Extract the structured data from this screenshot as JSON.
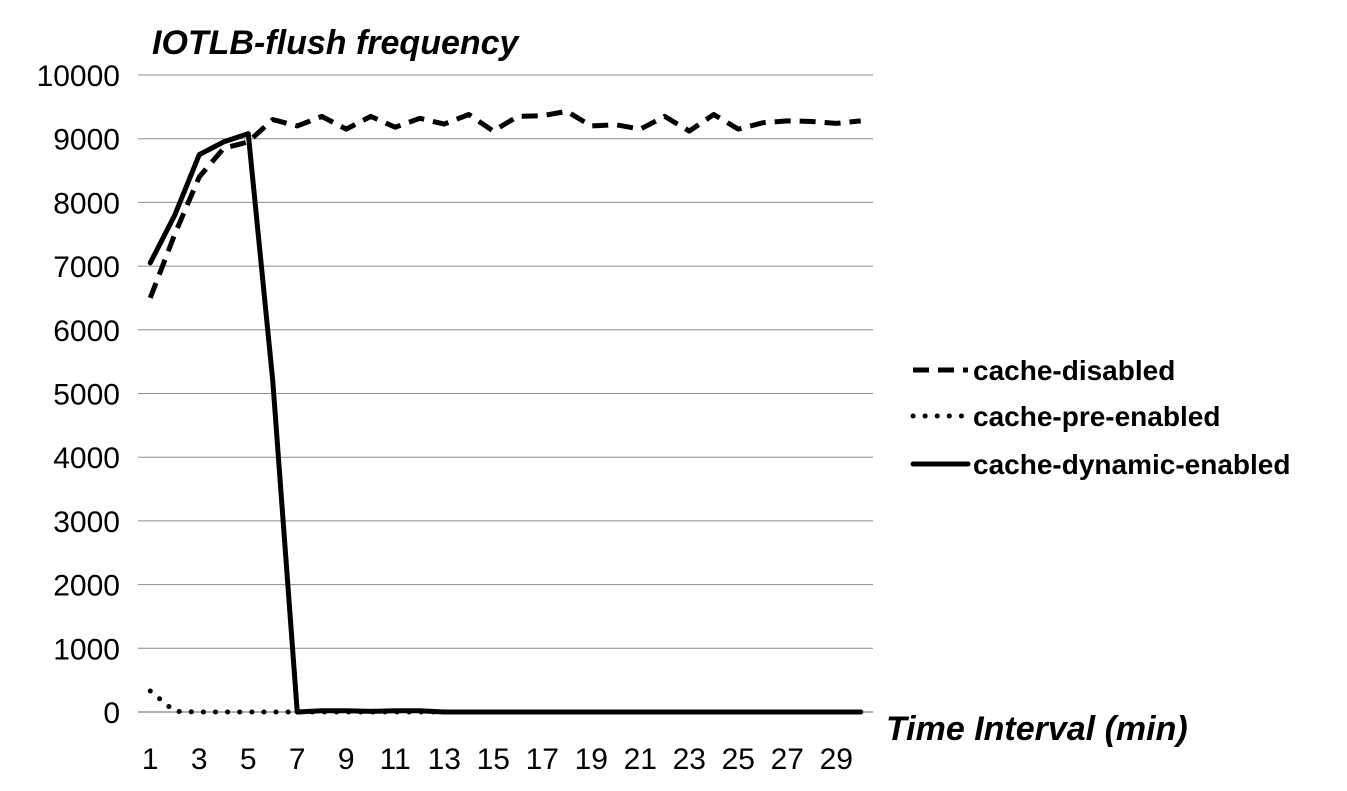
{
  "chart_data": {
    "type": "line",
    "title": "IOTLB-flush frequency",
    "xlabel": "Time Interval (min)",
    "ylabel": "",
    "ylim": [
      0,
      10000
    ],
    "yticks": [
      0,
      1000,
      2000,
      3000,
      4000,
      5000,
      6000,
      7000,
      8000,
      9000,
      10000
    ],
    "x": [
      1,
      2,
      3,
      4,
      5,
      6,
      7,
      8,
      9,
      10,
      11,
      12,
      13,
      14,
      15,
      16,
      17,
      18,
      19,
      20,
      21,
      22,
      23,
      24,
      25,
      26,
      27,
      28,
      29,
      30
    ],
    "xtick_labels": [
      "1",
      "3",
      "5",
      "7",
      "9",
      "11",
      "13",
      "15",
      "17",
      "19",
      "21",
      "23",
      "25",
      "27",
      "29"
    ],
    "grid": true,
    "legend_position": "right",
    "series": [
      {
        "name": "cache-disabled",
        "style": "dashed",
        "color": "#000000",
        "values": [
          6500,
          7500,
          8400,
          8850,
          8950,
          9300,
          9200,
          9350,
          9150,
          9350,
          9180,
          9320,
          9230,
          9380,
          9120,
          9350,
          9360,
          9430,
          9200,
          9220,
          9150,
          9350,
          9120,
          9380,
          9150,
          9250,
          9280,
          9270,
          9240,
          9280
        ]
      },
      {
        "name": "cache-pre-enabled",
        "style": "dotted",
        "color": "#000000",
        "values": [
          330,
          10,
          0,
          0,
          0,
          0,
          0,
          0,
          0,
          0,
          0,
          0,
          0,
          0,
          0,
          0,
          0,
          0,
          0,
          0,
          0,
          0,
          0,
          0,
          0,
          0,
          0,
          0,
          0,
          0
        ]
      },
      {
        "name": "cache-dynamic-enabled",
        "style": "solid",
        "color": "#000000",
        "values": [
          7050,
          7800,
          8750,
          8950,
          9080,
          5200,
          0,
          20,
          20,
          10,
          20,
          20,
          0,
          0,
          0,
          0,
          0,
          0,
          0,
          0,
          0,
          0,
          0,
          0,
          0,
          0,
          0,
          0,
          0,
          0
        ]
      }
    ]
  }
}
